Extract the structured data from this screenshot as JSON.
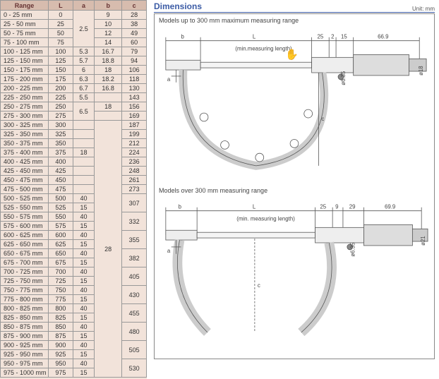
{
  "table": {
    "headers": [
      "Range",
      "L",
      "a",
      "b",
      "c"
    ],
    "rows": [
      [
        "0 - 25 mm",
        "0",
        "",
        "9",
        "28"
      ],
      [
        "25 - 50 mm",
        "25",
        "",
        "10",
        "38"
      ],
      [
        "50 - 75 mm",
        "50",
        "",
        "12",
        "49"
      ],
      [
        "75 - 100 mm",
        "75",
        "",
        "14",
        "60"
      ],
      [
        "100 - 125 mm",
        "100",
        "5.3",
        "16.7",
        "79"
      ],
      [
        "125 - 150 mm",
        "125",
        "5.7",
        "18.8",
        "94"
      ],
      [
        "150 - 175 mm",
        "150",
        "6",
        "18",
        "106"
      ],
      [
        "175 - 200 mm",
        "175",
        "6.3",
        "18.2",
        "118"
      ],
      [
        "200 - 225 mm",
        "200",
        "6.7",
        "16.8",
        "130"
      ],
      [
        "225 - 250 mm",
        "225",
        "5.5",
        "",
        "143"
      ],
      [
        "250 - 275 mm",
        "250",
        "",
        "18",
        "156"
      ],
      [
        "275 - 300 mm",
        "275",
        "",
        "",
        "169"
      ],
      [
        "300 - 325 mm",
        "300",
        "",
        "",
        "187"
      ],
      [
        "325 - 350 mm",
        "325",
        "",
        "",
        "199"
      ],
      [
        "350 - 375 mm",
        "350",
        "",
        "",
        "212"
      ],
      [
        "375 - 400 mm",
        "375",
        "18",
        "",
        "224"
      ],
      [
        "400 - 425 mm",
        "400",
        "",
        "",
        "236"
      ],
      [
        "425 - 450 mm",
        "425",
        "",
        "",
        "248"
      ],
      [
        "450 - 475 mm",
        "450",
        "",
        "",
        "261"
      ],
      [
        "475 - 500 mm",
        "475",
        "",
        "",
        "273"
      ],
      [
        "500 - 525 mm",
        "500",
        "40",
        "",
        ""
      ],
      [
        "525 - 550 mm",
        "525",
        "15",
        "",
        ""
      ],
      [
        "550 - 575 mm",
        "550",
        "40",
        "",
        ""
      ],
      [
        "575 - 600 mm",
        "575",
        "15",
        "",
        ""
      ],
      [
        "600 - 625 mm",
        "600",
        "40",
        "",
        ""
      ],
      [
        "625 - 650 mm",
        "625",
        "15",
        "",
        ""
      ],
      [
        "650 - 675 mm",
        "650",
        "40",
        "28",
        ""
      ],
      [
        "675 - 700 mm",
        "675",
        "15",
        "",
        ""
      ],
      [
        "700 - 725 mm",
        "700",
        "40",
        "",
        ""
      ],
      [
        "725 - 750 mm",
        "725",
        "15",
        "",
        ""
      ],
      [
        "750 - 775 mm",
        "750",
        "40",
        "",
        ""
      ],
      [
        "775 - 800 mm",
        "775",
        "15",
        "",
        ""
      ],
      [
        "800 - 825 mm",
        "800",
        "40",
        "",
        ""
      ],
      [
        "825 - 850 mm",
        "825",
        "15",
        "",
        ""
      ],
      [
        "850 - 875 mm",
        "850",
        "40",
        "",
        ""
      ],
      [
        "875 - 900 mm",
        "875",
        "15",
        "",
        ""
      ],
      [
        "900 - 925 mm",
        "900",
        "40",
        "",
        ""
      ],
      [
        "925 - 950 mm",
        "925",
        "15",
        "",
        ""
      ],
      [
        "950 - 975 mm",
        "950",
        "40",
        "",
        ""
      ],
      [
        "975 - 1000 mm",
        "975",
        "15",
        "",
        ""
      ]
    ],
    "a_merge": [
      {
        "start": 0,
        "span": 4,
        "val": "2.5"
      },
      {
        "start": 10,
        "span": 2,
        "val": "6.5"
      }
    ],
    "b_merge_28": {
      "start": 12,
      "span": 28,
      "val": "28"
    },
    "c_merge": [
      {
        "start": 20,
        "span": 2,
        "val": "307"
      },
      {
        "start": 22,
        "span": 2,
        "val": "332"
      },
      {
        "start": 24,
        "span": 2,
        "val": "355"
      },
      {
        "start": 26,
        "span": 2,
        "val": "382"
      },
      {
        "start": 28,
        "span": 2,
        "val": "405"
      },
      {
        "start": 30,
        "span": 2,
        "val": "430"
      },
      {
        "start": 32,
        "span": 2,
        "val": "455"
      },
      {
        "start": 34,
        "span": 2,
        "val": "480"
      },
      {
        "start": 36,
        "span": 2,
        "val": "505"
      },
      {
        "start": 38,
        "span": 2,
        "val": "530"
      }
    ]
  },
  "dimensions": {
    "title": "Dimensions",
    "unit": "Unit: mm",
    "label1": "Models up to 300 mm maximum measuring range",
    "label2": "Models over 300 mm measuring range",
    "diag1": {
      "b": "b",
      "L": "L",
      "ml": "(min.measuring length)",
      "d25": "25",
      "d2": "2",
      "d15": "15",
      "d669": "66.9",
      "a": "a",
      "c": "c",
      "phi63": "ø6.35",
      "phi18": "ø18"
    },
    "diag2": {
      "b": "b",
      "L": "L",
      "ml": "(min. measuring length)",
      "d25": "25",
      "d9": "9",
      "d29": "29",
      "d699": "69.9",
      "a": "a",
      "c": "c",
      "phi63": "ø6.35",
      "phi21": "ø21"
    }
  },
  "colors": {
    "header_bg": "#d7bcae",
    "table_bg": "#f2e3da",
    "border": "#999999",
    "title": "#3b5ba5",
    "text": "#333333"
  }
}
